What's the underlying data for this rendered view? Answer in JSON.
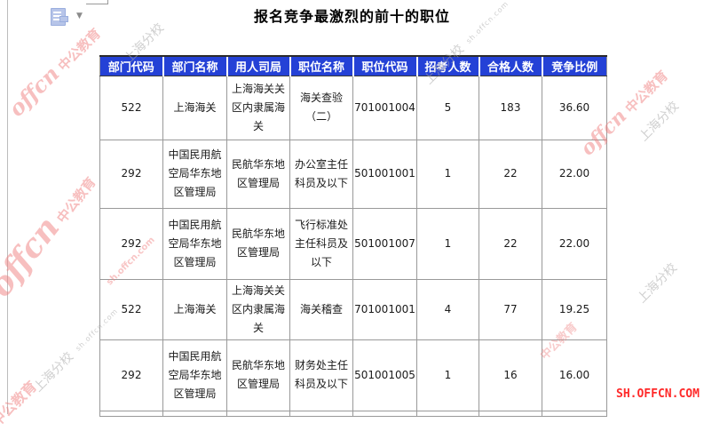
{
  "page": {
    "title": "报名竞争最激烈的前十的职位"
  },
  "icons": {
    "paste_options": "clipboard-document",
    "dropdown_arrow": "▼"
  },
  "table": {
    "columns": [
      "部门代码",
      "部门名称",
      "用人司局",
      "职位名称",
      "职位代码",
      "招考人数",
      "合格人数",
      "竞争比例"
    ],
    "rows": [
      [
        "522",
        "上海海关",
        "上海海关关区内隶属海关",
        "海关查验（二）",
        "701001004",
        "5",
        "183",
        "36.60"
      ],
      [
        "292",
        "中国民用航空局华东地区管理局",
        "民航华东地区管理局",
        "办公室主任科员及以下",
        "501001001",
        "1",
        "22",
        "22.00"
      ],
      [
        "292",
        "中国民用航空局华东地区管理局",
        "民航华东地区管理局",
        "飞行标准处主任科员及以下",
        "501001007",
        "1",
        "22",
        "22.00"
      ],
      [
        "522",
        "上海海关",
        "上海海关关区内隶属海关",
        "海关稽查",
        "701001001",
        "4",
        "77",
        "19.25"
      ],
      [
        "292",
        "中国民用航空局华东地区管理局",
        "民航华东地区管理局",
        "财务处主任科员及以下",
        "501001005",
        "1",
        "16",
        "16.00"
      ],
      [
        "",
        "",
        "",
        "",
        "",
        "",
        "",
        ""
      ]
    ]
  },
  "watermarks": {
    "brand_script": "offcn",
    "brand_name": "中公教育",
    "branch": "上海分校",
    "site": "sh.offcn.com",
    "corner_logo": "SH.OFFCN.COM"
  },
  "colors": {
    "header_bg": "#2441d6",
    "header_text": "#ffffff",
    "grid_line": "#999999",
    "watermark_red": "#f08080",
    "watermark_gray": "#a8a8a8",
    "corner_logo_red": "#ff2a2a"
  }
}
